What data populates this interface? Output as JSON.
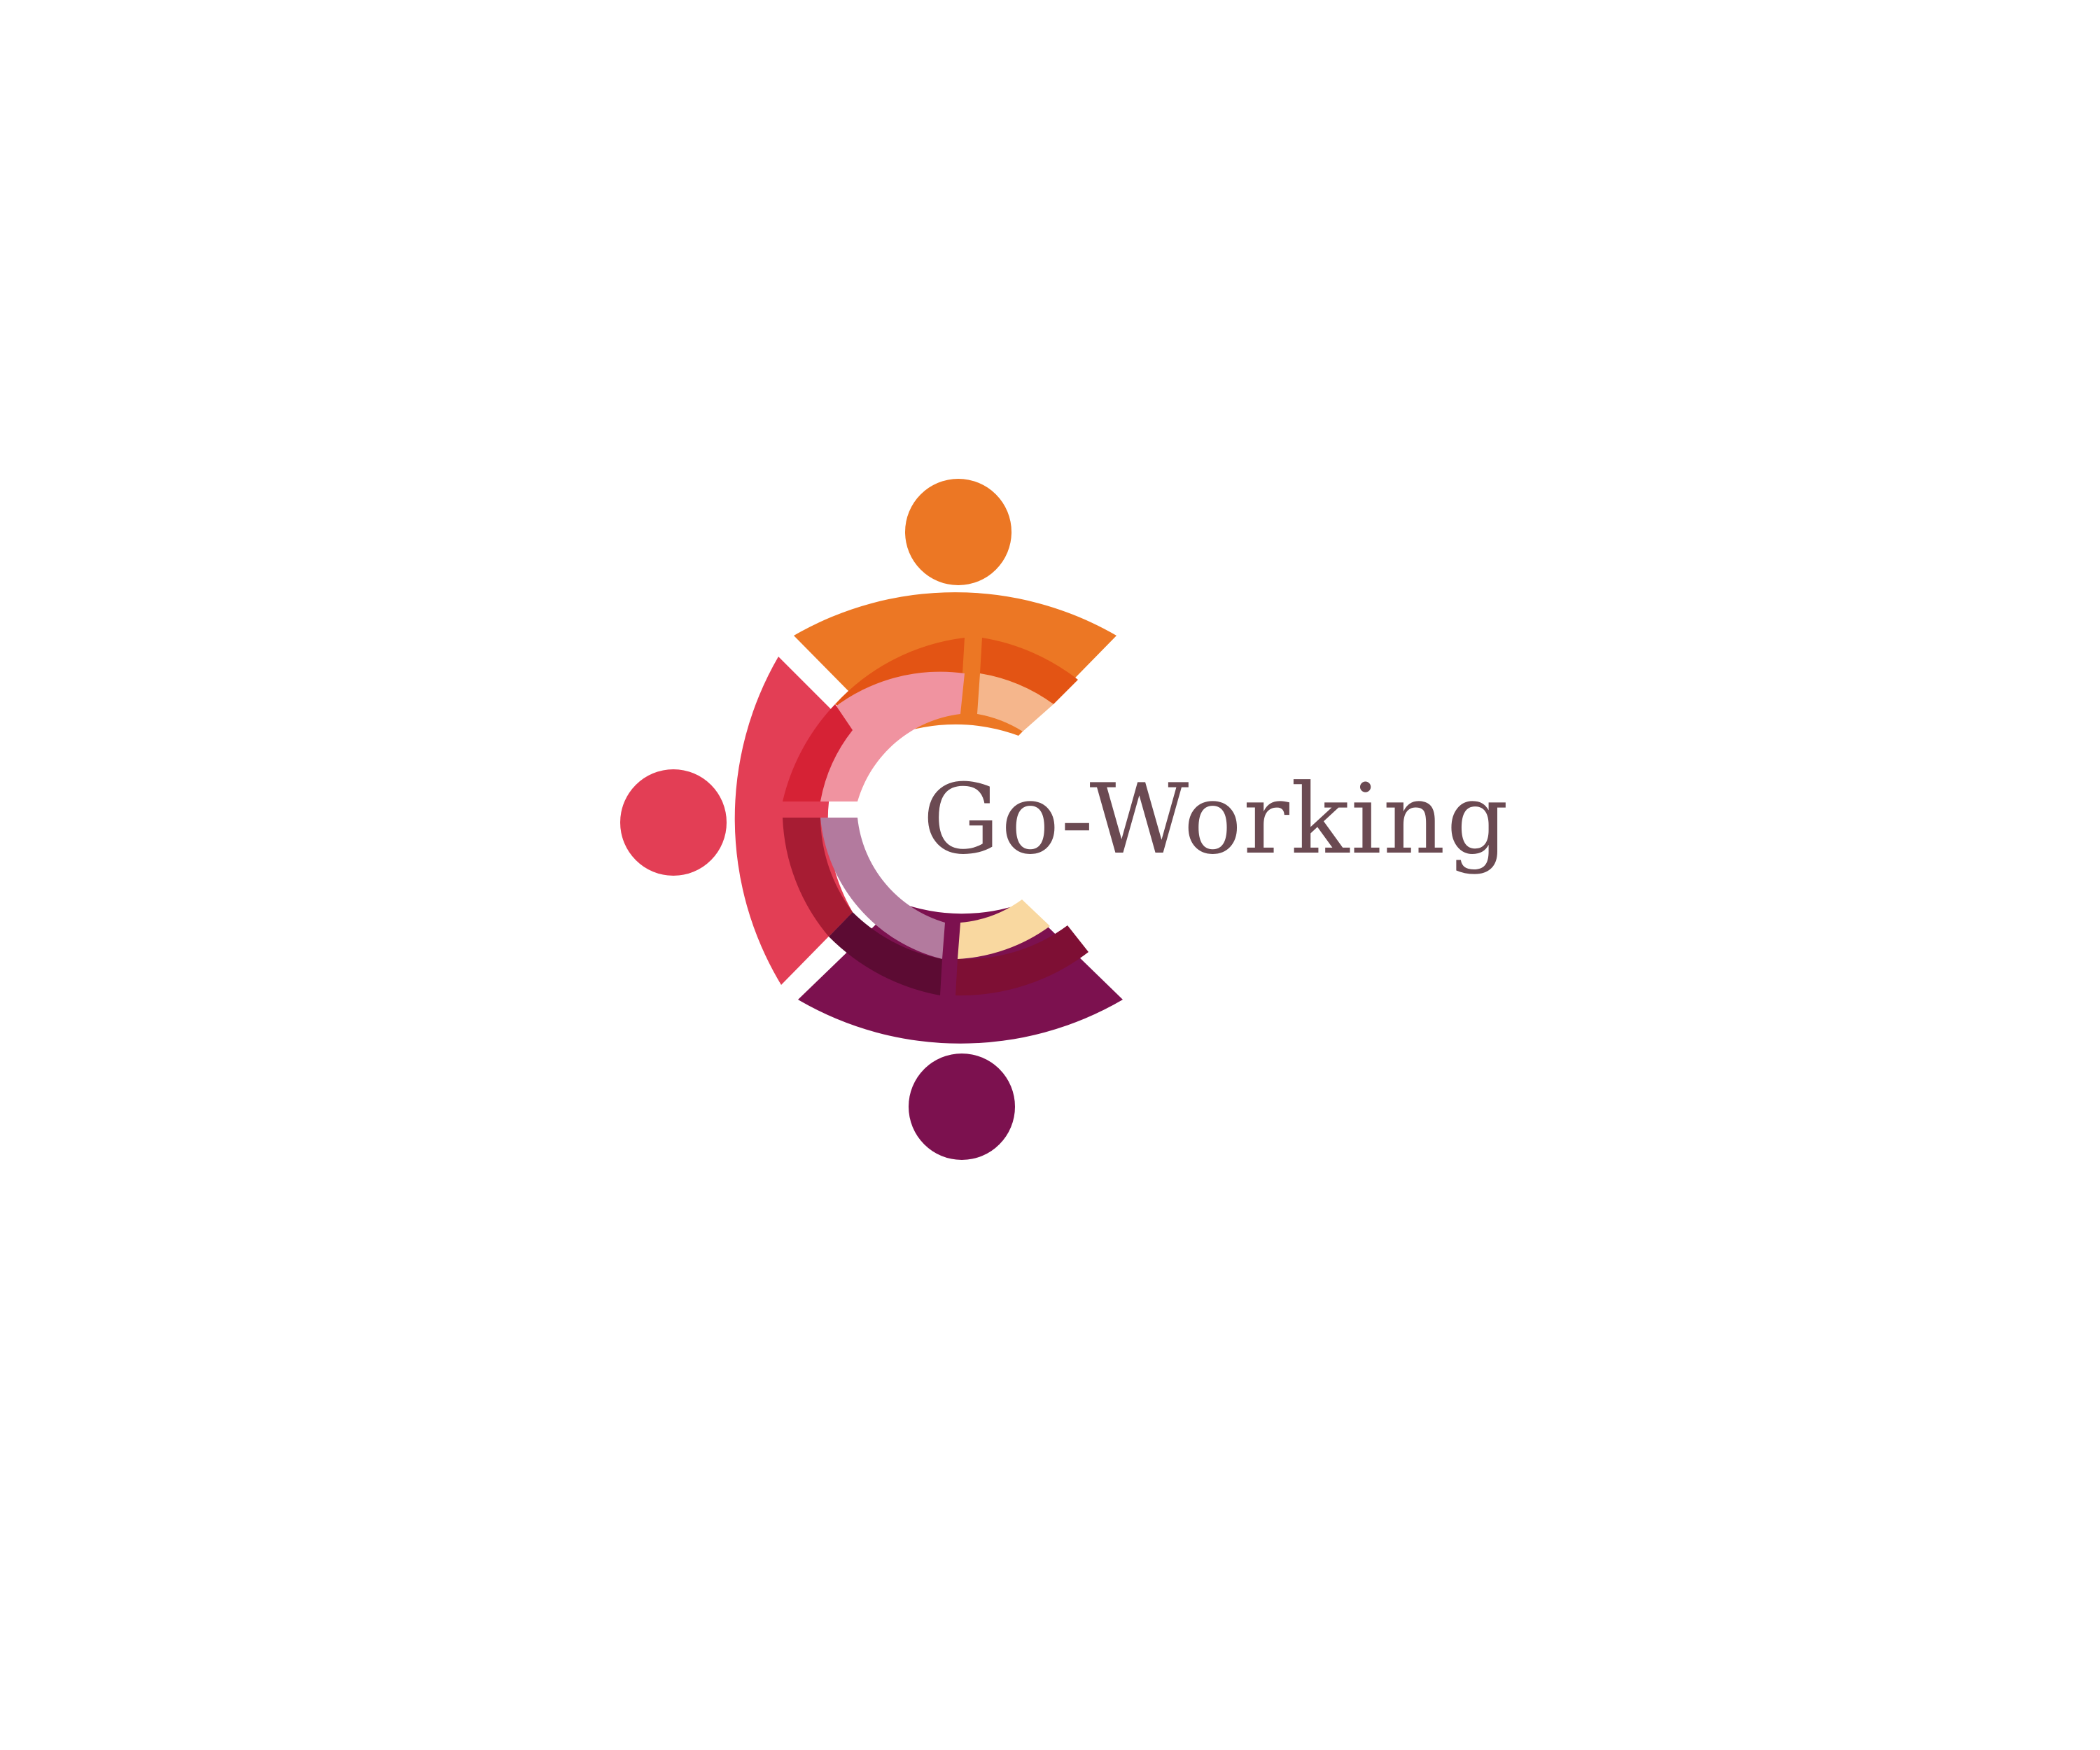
{
  "brand": {
    "name": "Go-Working",
    "text_color": "#6b4a52",
    "background": "#ffffff"
  },
  "logo": {
    "icon": "people-circle-logo-icon",
    "colors": {
      "orange": "#ec7724",
      "red": "#e33e55",
      "purple": "#7c114f",
      "orange_inner": "#e35414",
      "orange_light": "#f5b68c",
      "pink_inner": "#f093a0",
      "red_inner": "#d62235",
      "red_dark": "#a71c33",
      "mauve_inner": "#b37a9e",
      "plum_dark": "#5c0b33",
      "purple_inner": "#7e0f34",
      "peach_light": "#f9d8a0"
    }
  }
}
